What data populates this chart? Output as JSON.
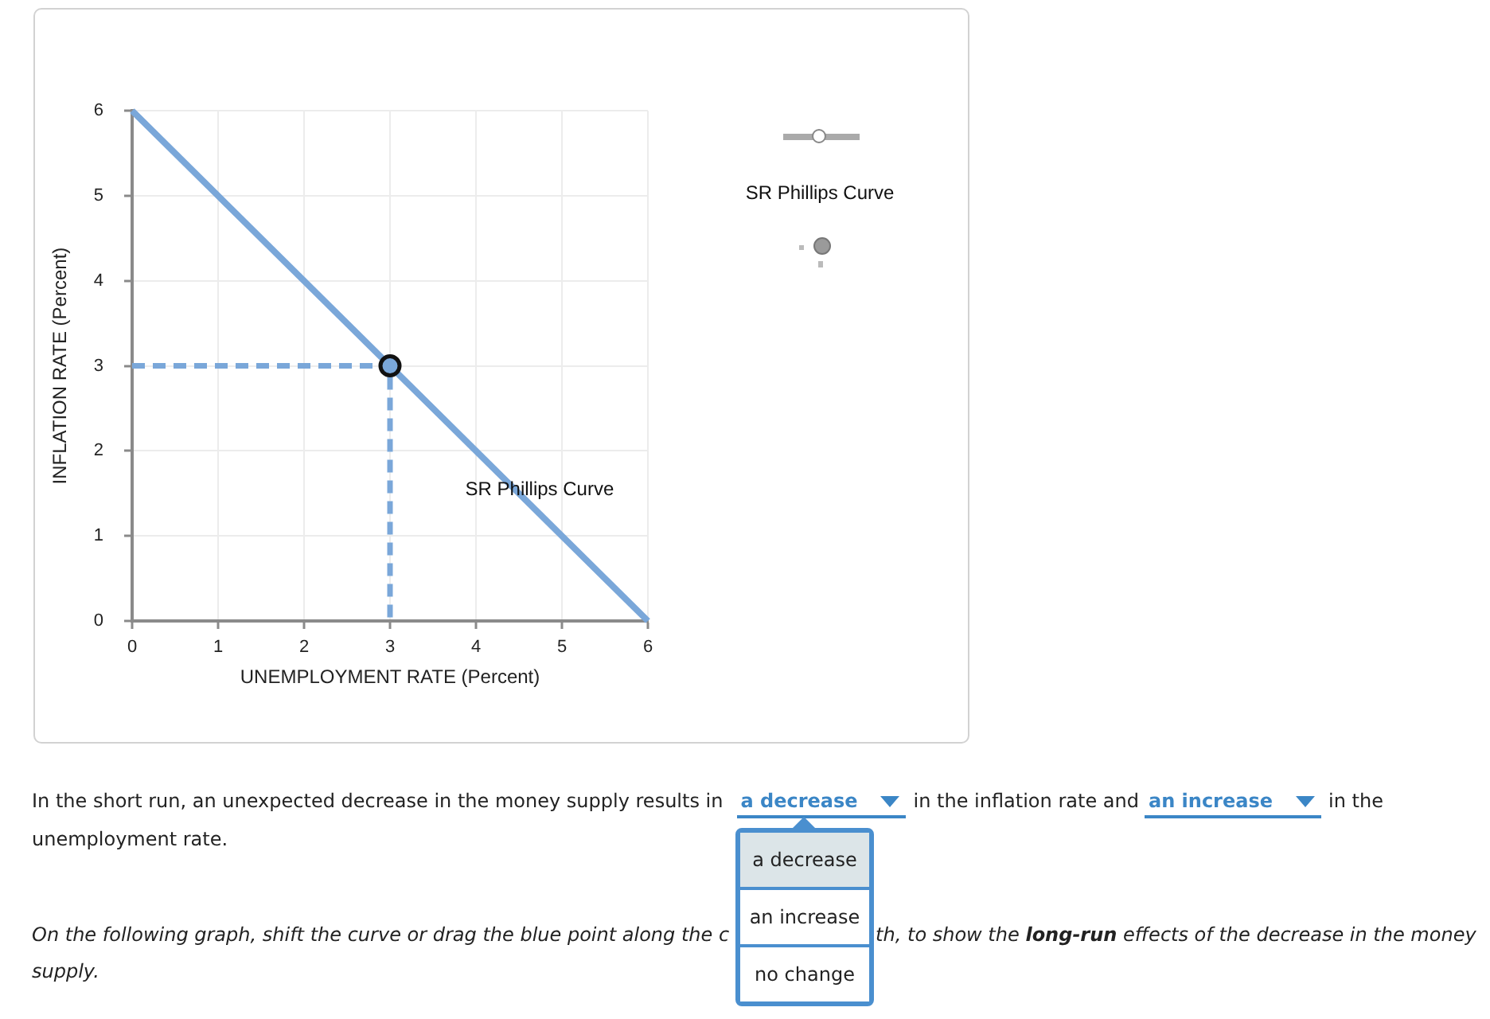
{
  "chart_data": {
    "type": "line",
    "xlabel": "UNEMPLOYMENT RATE (Percent)",
    "ylabel": "INFLATION RATE (Percent)",
    "xlim": [
      0,
      6
    ],
    "ylim": [
      0,
      6
    ],
    "xticks": [
      0,
      1,
      2,
      3,
      4,
      5,
      6
    ],
    "yticks": [
      0,
      1,
      2,
      3,
      4,
      5,
      6
    ],
    "grid": true,
    "series": [
      {
        "name": "SR Phillips Curve",
        "type": "line",
        "color": "#7aa7d9",
        "x": [
          0,
          6
        ],
        "values": [
          6,
          0
        ],
        "marker": "none",
        "line_style": "solid"
      },
      {
        "type": "line",
        "color": "#7aa7d9",
        "x": [
          0,
          3,
          3
        ],
        "values": [
          3,
          3,
          0
        ],
        "marker": "none",
        "line_style": "dashed"
      },
      {
        "type": "scatter",
        "color": "#7aa7d9",
        "x": [
          3
        ],
        "values": [
          3
        ],
        "marker": "circle"
      }
    ],
    "annotations": [
      "SR Phillips Curve",
      "In the short run, an unexpected decrease in the money supply results in",
      "a decrease",
      "in the inflation rate and",
      "an increase",
      "in the",
      "unemployment rate.",
      "a decrease",
      "an increase",
      "no change",
      "On the following graph, shift the curve or drag the blue point along the c",
      "th, to show the",
      "long-run",
      "effects of the decrease in the money",
      "supply."
    ]
  }
}
